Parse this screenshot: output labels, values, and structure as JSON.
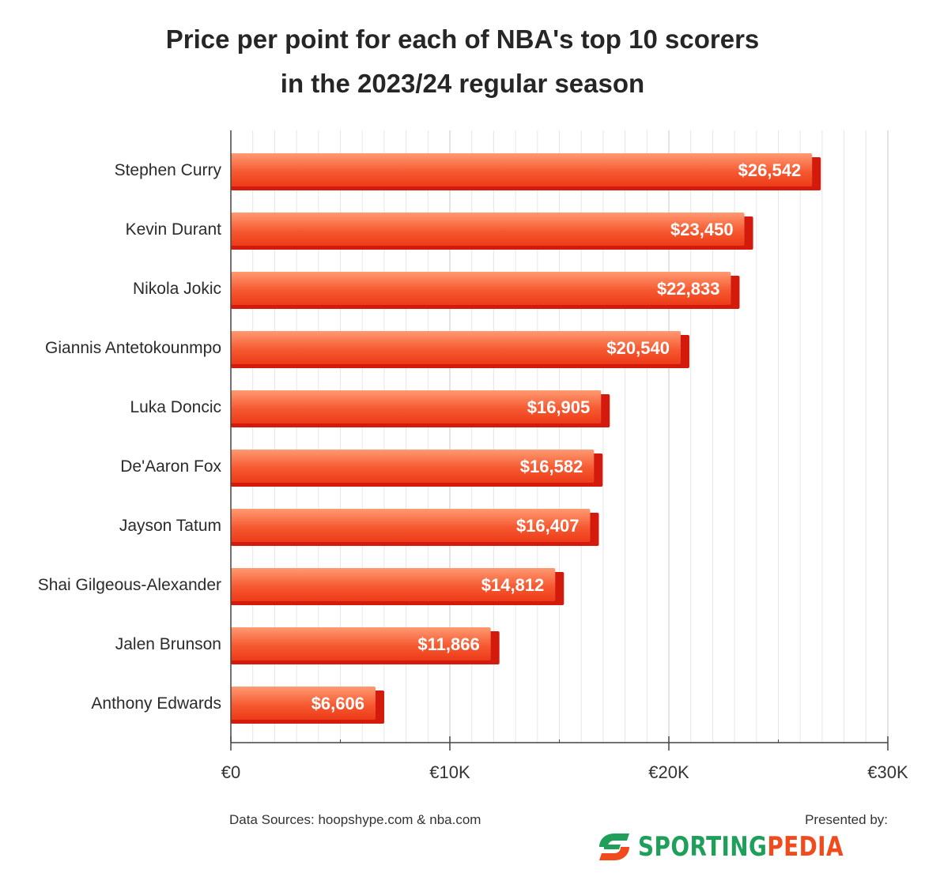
{
  "title_lines": [
    "Price per point for each of NBA's top 10 scorers",
    "in the 2023/24 regular season"
  ],
  "chart_data": {
    "type": "bar",
    "orientation": "horizontal",
    "title": "Price per point for each of NBA's top 10 scorers in the 2023/24 regular season",
    "categories": [
      "Stephen Curry",
      "Kevin Durant",
      "Nikola Jokic",
      "Giannis Antetokounmpo",
      "Luka Doncic",
      "De'Aaron Fox",
      "Jayson Tatum",
      "Shai Gilgeous-Alexander",
      "Jalen Brunson",
      "Anthony Edwards"
    ],
    "values": [
      26542,
      23450,
      22833,
      20540,
      16905,
      16582,
      16407,
      14812,
      11866,
      6606
    ],
    "value_labels": [
      "$26,542",
      "$23,450",
      "$22,833",
      "$20,540",
      "$16,905",
      "$16,582",
      "$16,407",
      "$14,812",
      "$11,866",
      "$6,606"
    ],
    "xlim": [
      0,
      30000
    ],
    "x_ticks": [
      0,
      10000,
      20000,
      30000
    ],
    "x_tick_labels": [
      "€0",
      "€10K",
      "€20K",
      "€30K"
    ],
    "grid": true,
    "bar_color": "#f04a1d",
    "bar_shadow_color": "#d41a0c"
  },
  "footer": {
    "source": "Data Sources: hoopshype.com & nba.com",
    "presented_by": "Presented by:",
    "brand_part1": "SPORTING",
    "brand_part2": "PEDIA",
    "brand_icon": "sportingpedia-logo-icon"
  }
}
